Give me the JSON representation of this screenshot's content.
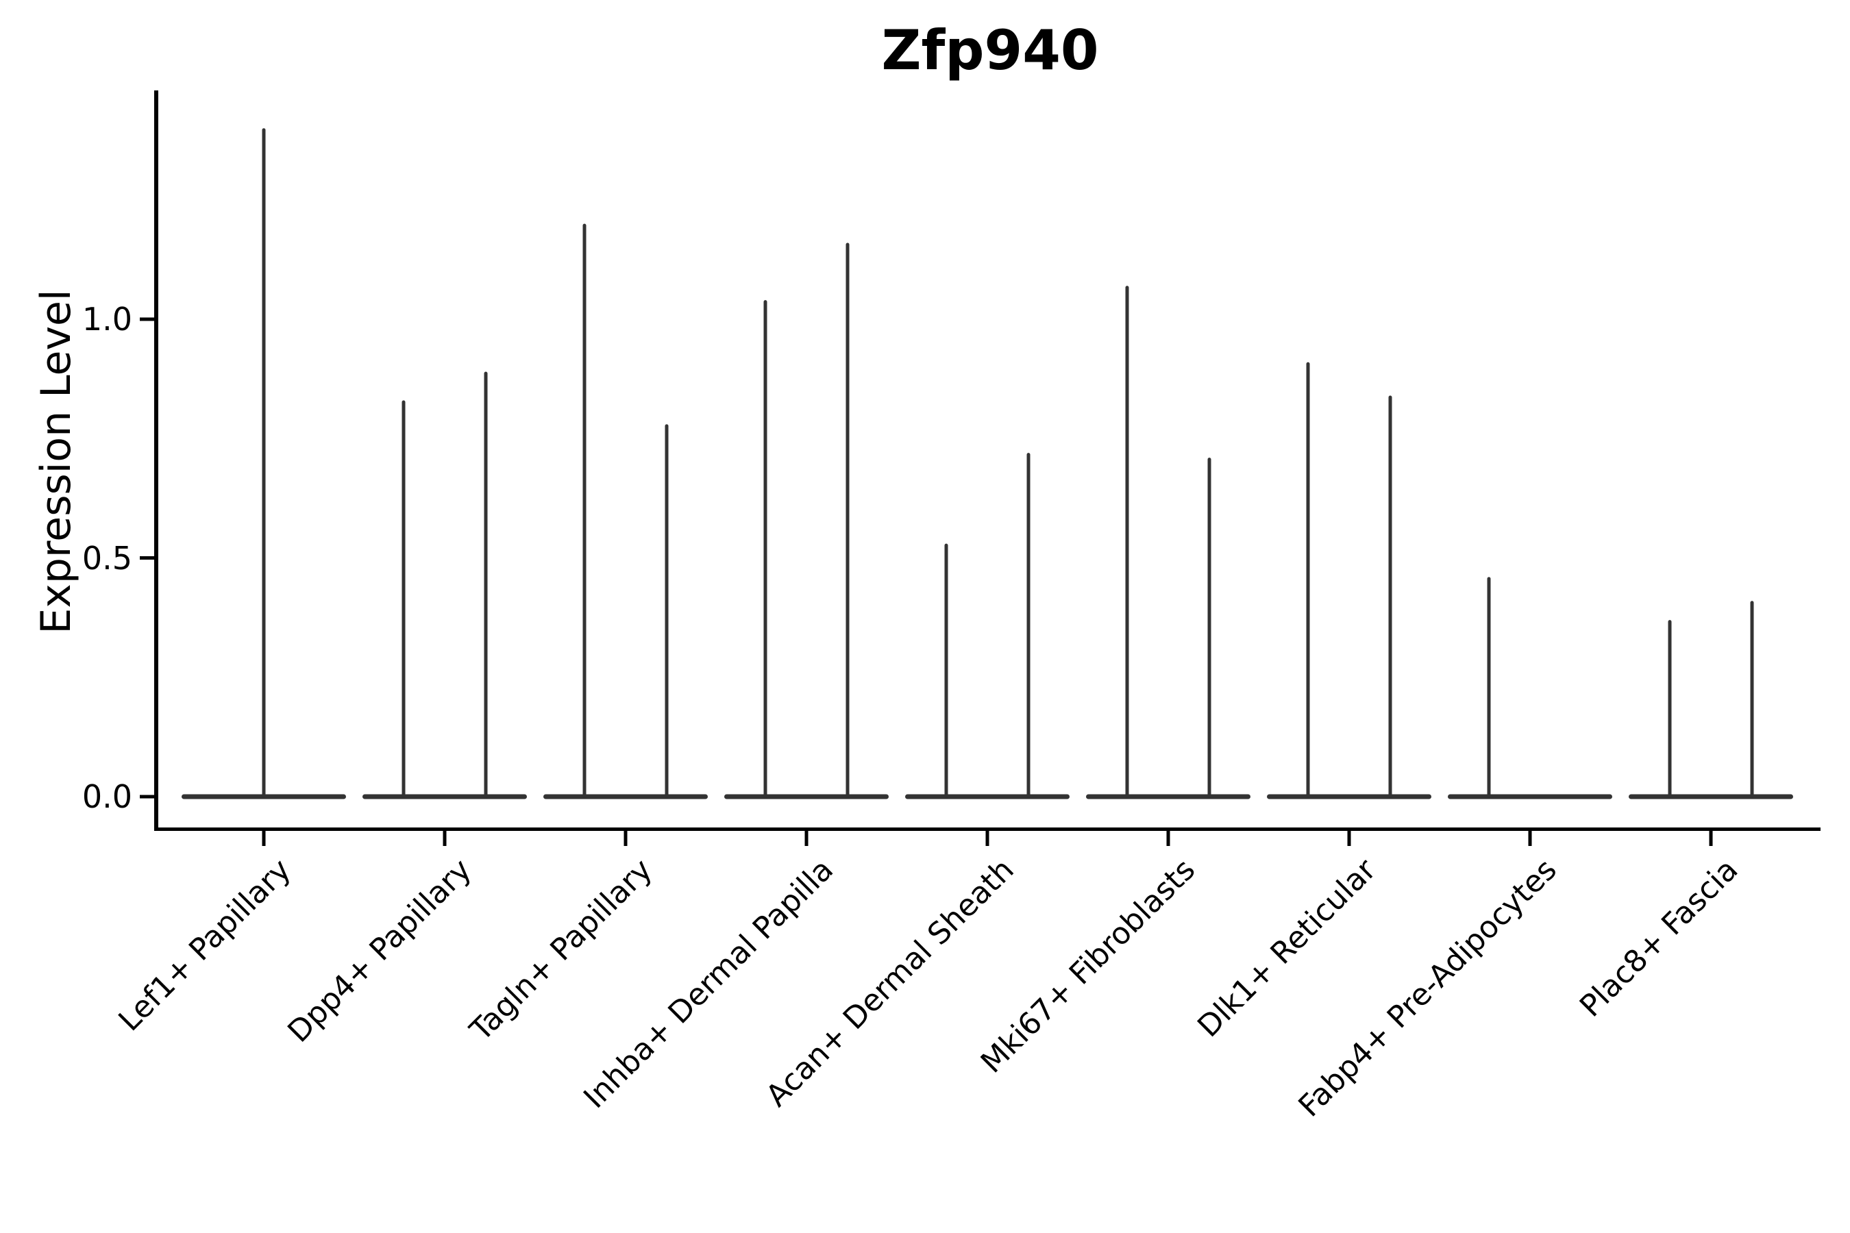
{
  "figure": {
    "background": "#ffffff"
  },
  "chart_data": {
    "type": "violin",
    "title": "Zfp940",
    "xlabel": "",
    "ylabel": "Expression Level",
    "yticks": [
      {
        "label": "0.0",
        "value": 0.0
      },
      {
        "label": "0.5",
        "value": 0.5
      },
      {
        "label": "1.0",
        "value": 1.0
      }
    ],
    "ylim": [
      -0.07,
      1.48
    ],
    "grid": false,
    "legend": "none",
    "x_tick_rotation_deg": 45,
    "violin_style": "collapsed violins: wide flat density band at 0 with a thin spike reaching the maximum expression value; two side-by-side violins per category unless noted",
    "categories": [
      "Lef1+ Papillary",
      "Dpp4+ Papillary",
      "Tagln+ Papillary",
      "Inhba+ Dermal Papilla",
      "Acan+ Dermal Sheath",
      "Mki67+ Fibroblasts",
      "Dlk1+ Reticular",
      "Fabp4+ Pre-Adipocytes",
      "Plac8+ Fascia"
    ],
    "violins": [
      {
        "category": "Lef1+ Papillary",
        "spikes": [
          {
            "slot": "center",
            "max": 1.4
          }
        ]
      },
      {
        "category": "Dpp4+ Papillary",
        "spikes": [
          {
            "slot": "left",
            "max": 0.83
          },
          {
            "slot": "right",
            "max": 0.89
          }
        ]
      },
      {
        "category": "Tagln+ Papillary",
        "spikes": [
          {
            "slot": "left",
            "max": 1.2
          },
          {
            "slot": "right",
            "max": 0.78
          }
        ]
      },
      {
        "category": "Inhba+ Dermal Papilla",
        "spikes": [
          {
            "slot": "left",
            "max": 1.04
          },
          {
            "slot": "right",
            "max": 1.16
          }
        ]
      },
      {
        "category": "Acan+ Dermal Sheath",
        "spikes": [
          {
            "slot": "left",
            "max": 0.53
          },
          {
            "slot": "right",
            "max": 0.72
          }
        ]
      },
      {
        "category": "Mki67+ Fibroblasts",
        "spikes": [
          {
            "slot": "left",
            "max": 1.07
          },
          {
            "slot": "right",
            "max": 0.71
          }
        ]
      },
      {
        "category": "Dlk1+ Reticular",
        "spikes": [
          {
            "slot": "left",
            "max": 0.91
          },
          {
            "slot": "right",
            "max": 0.84
          }
        ]
      },
      {
        "category": "Fabp4+ Pre-Adipocytes",
        "spikes": [
          {
            "slot": "left",
            "max": 0.46
          },
          {
            "slot": "right",
            "max": 0.0
          }
        ]
      },
      {
        "category": "Plac8+ Fascia",
        "spikes": [
          {
            "slot": "left",
            "max": 0.37
          },
          {
            "slot": "right",
            "max": 0.41
          }
        ]
      }
    ],
    "colors": {
      "violin": "#333333",
      "axis": "#000000",
      "text": "#000000",
      "background": "#ffffff"
    }
  }
}
